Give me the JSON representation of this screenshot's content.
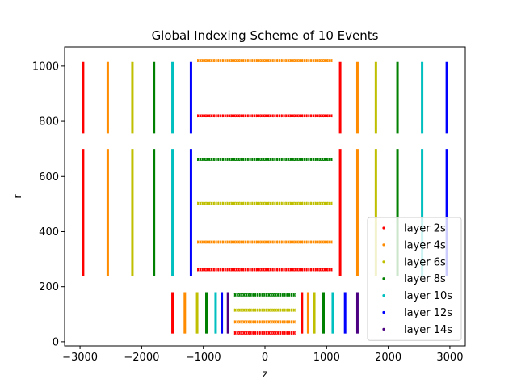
{
  "chart_data": {
    "type": "scatter",
    "title": "Global Indexing Scheme of 10 Events",
    "xlabel": "z",
    "ylabel": "r",
    "xlim": [
      -3250,
      3250
    ],
    "ylim": [
      -15,
      1070
    ],
    "xticks": [
      -3000,
      -2000,
      -1000,
      0,
      1000,
      2000,
      3000
    ],
    "yticks": [
      0,
      200,
      400,
      600,
      800,
      1000
    ],
    "grid": false,
    "legend_position": "lower-right",
    "series": [
      {
        "name": "layer 2s",
        "color": "#ff0000",
        "barrel_bands": [
          {
            "r": 820,
            "z": [
              -1100,
              1100
            ]
          },
          {
            "r": 262,
            "z": [
              -1100,
              1100
            ]
          },
          {
            "r": 32,
            "z": [
              -500,
              500
            ]
          }
        ],
        "endcap_bands": [
          {
            "z": -2950,
            "r": [
              755,
              1015
            ]
          },
          {
            "z": -2950,
            "r": [
              240,
              700
            ]
          },
          {
            "z": 1220,
            "r": [
              755,
              1015
            ]
          },
          {
            "z": 1220,
            "r": [
              240,
              700
            ]
          },
          {
            "z": -1500,
            "r": [
              30,
              180
            ]
          },
          {
            "z": 600,
            "r": [
              30,
              180
            ]
          }
        ]
      },
      {
        "name": "layer 4s",
        "color": "#ff8c00",
        "barrel_bands": [
          {
            "r": 1020,
            "z": [
              -1100,
              1100
            ]
          },
          {
            "r": 362,
            "z": [
              -1100,
              1100
            ]
          },
          {
            "r": 72,
            "z": [
              -500,
              500
            ]
          }
        ],
        "endcap_bands": [
          {
            "z": -2550,
            "r": [
              755,
              1015
            ]
          },
          {
            "z": -2550,
            "r": [
              240,
              700
            ]
          },
          {
            "z": 1500,
            "r": [
              755,
              1015
            ]
          },
          {
            "z": 1500,
            "r": [
              240,
              700
            ]
          },
          {
            "z": -1300,
            "r": [
              30,
              180
            ]
          },
          {
            "z": 700,
            "r": [
              30,
              180
            ]
          }
        ]
      },
      {
        "name": "layer 6s",
        "color": "#bfbf00",
        "barrel_bands": [
          {
            "r": 502,
            "z": [
              -1100,
              1100
            ]
          },
          {
            "r": 115,
            "z": [
              -500,
              500
            ]
          }
        ],
        "endcap_bands": [
          {
            "z": -2150,
            "r": [
              755,
              1015
            ]
          },
          {
            "z": -2150,
            "r": [
              240,
              700
            ]
          },
          {
            "z": 1800,
            "r": [
              755,
              1015
            ]
          },
          {
            "z": 1800,
            "r": [
              240,
              700
            ]
          },
          {
            "z": -1100,
            "r": [
              30,
              180
            ]
          },
          {
            "z": 800,
            "r": [
              30,
              180
            ]
          }
        ]
      },
      {
        "name": "layer 8s",
        "color": "#008000",
        "barrel_bands": [
          {
            "r": 662,
            "z": [
              -1100,
              1100
            ]
          },
          {
            "r": 170,
            "z": [
              -500,
              500
            ]
          }
        ],
        "endcap_bands": [
          {
            "z": -1800,
            "r": [
              755,
              1015
            ]
          },
          {
            "z": -1800,
            "r": [
              240,
              700
            ]
          },
          {
            "z": 2150,
            "r": [
              755,
              1015
            ]
          },
          {
            "z": 2150,
            "r": [
              240,
              700
            ]
          },
          {
            "z": -950,
            "r": [
              30,
              180
            ]
          },
          {
            "z": 950,
            "r": [
              30,
              180
            ]
          }
        ]
      },
      {
        "name": "layer 10s",
        "color": "#00bfbf",
        "barrel_bands": [],
        "endcap_bands": [
          {
            "z": -1500,
            "r": [
              755,
              1015
            ]
          },
          {
            "z": -1500,
            "r": [
              240,
              700
            ]
          },
          {
            "z": 2550,
            "r": [
              755,
              1015
            ]
          },
          {
            "z": 2550,
            "r": [
              240,
              700
            ]
          },
          {
            "z": -800,
            "r": [
              30,
              180
            ]
          },
          {
            "z": 1100,
            "r": [
              30,
              180
            ]
          }
        ]
      },
      {
        "name": "layer 12s",
        "color": "#0000ff",
        "barrel_bands": [],
        "endcap_bands": [
          {
            "z": -1200,
            "r": [
              755,
              1015
            ]
          },
          {
            "z": -1200,
            "r": [
              240,
              700
            ]
          },
          {
            "z": 2950,
            "r": [
              755,
              1015
            ]
          },
          {
            "z": 2950,
            "r": [
              240,
              700
            ]
          },
          {
            "z": -700,
            "r": [
              30,
              180
            ]
          },
          {
            "z": 1300,
            "r": [
              30,
              180
            ]
          }
        ]
      },
      {
        "name": "layer 14s",
        "color": "#4b0082",
        "barrel_bands": [],
        "endcap_bands": [
          {
            "z": -600,
            "r": [
              30,
              180
            ]
          },
          {
            "z": 1500,
            "r": [
              30,
              180
            ]
          }
        ]
      }
    ]
  }
}
